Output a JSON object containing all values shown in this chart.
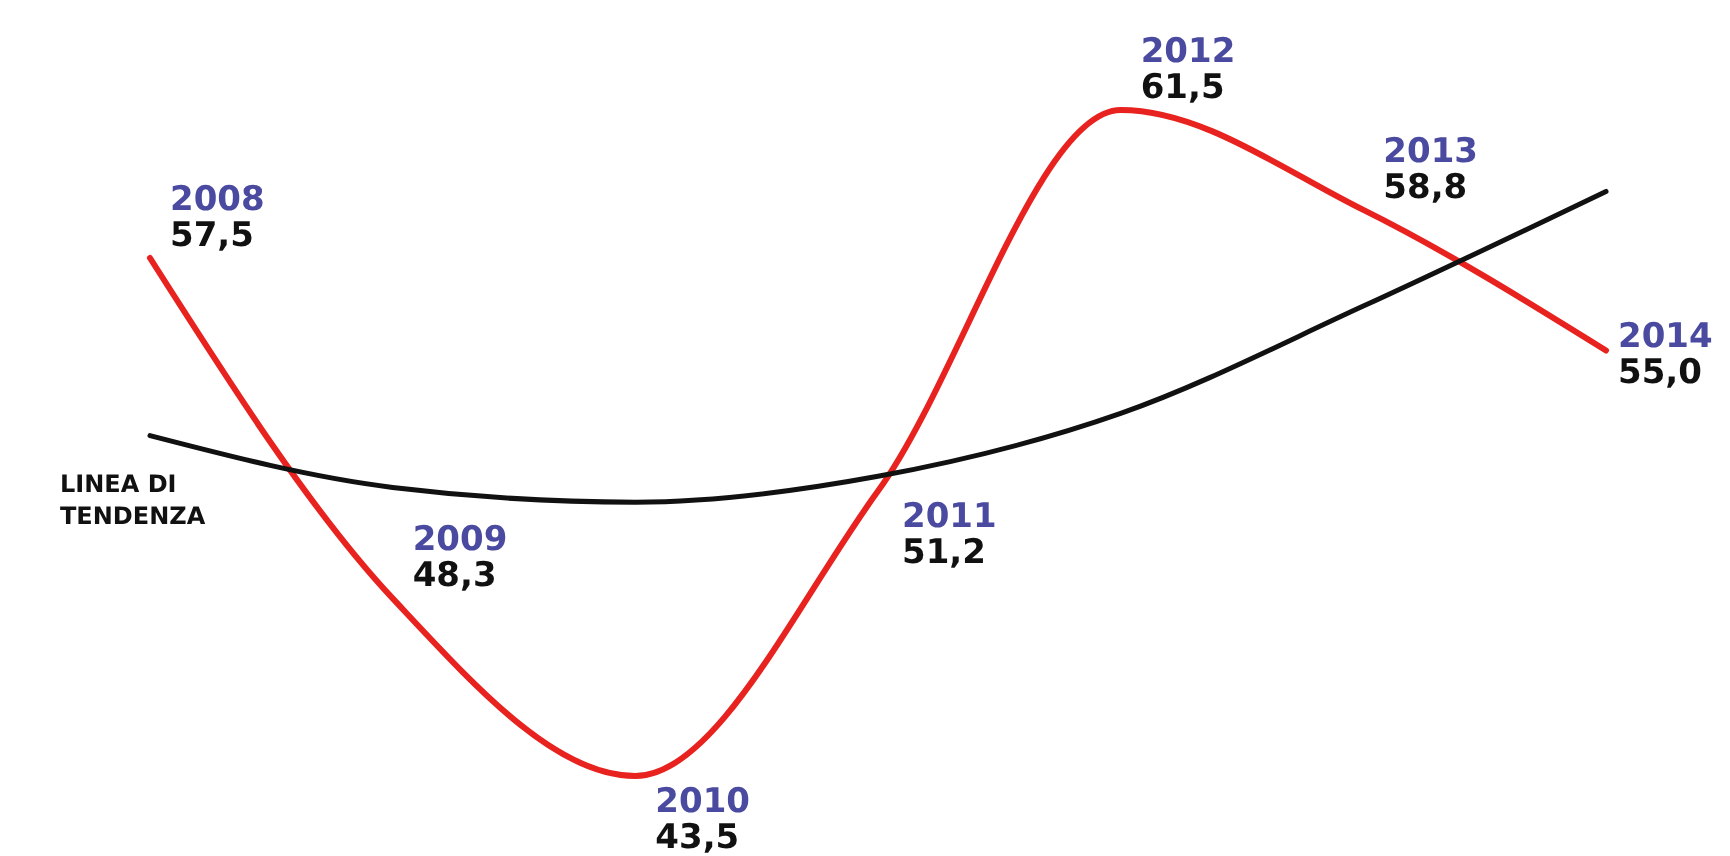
{
  "chart_data": {
    "type": "line",
    "categories": [
      "2008",
      "2009",
      "2010",
      "2011",
      "2012",
      "2013",
      "2014"
    ],
    "series": [
      {
        "color": "#e8231f",
        "values": [
          57.5,
          48.3,
          43.5,
          51.2,
          61.5,
          58.8,
          55.0
        ],
        "value_labels": [
          "57,5",
          "48,3",
          "43,5",
          "51,2",
          "61,5",
          "58,8",
          "55,0"
        ]
      },
      {
        "name": "LINEA DI TENDENZA",
        "color": "#111111",
        "values": [
          52.7,
          51.3,
          50.9,
          51.6,
          53.3,
          56.2,
          59.3
        ]
      }
    ]
  }
}
